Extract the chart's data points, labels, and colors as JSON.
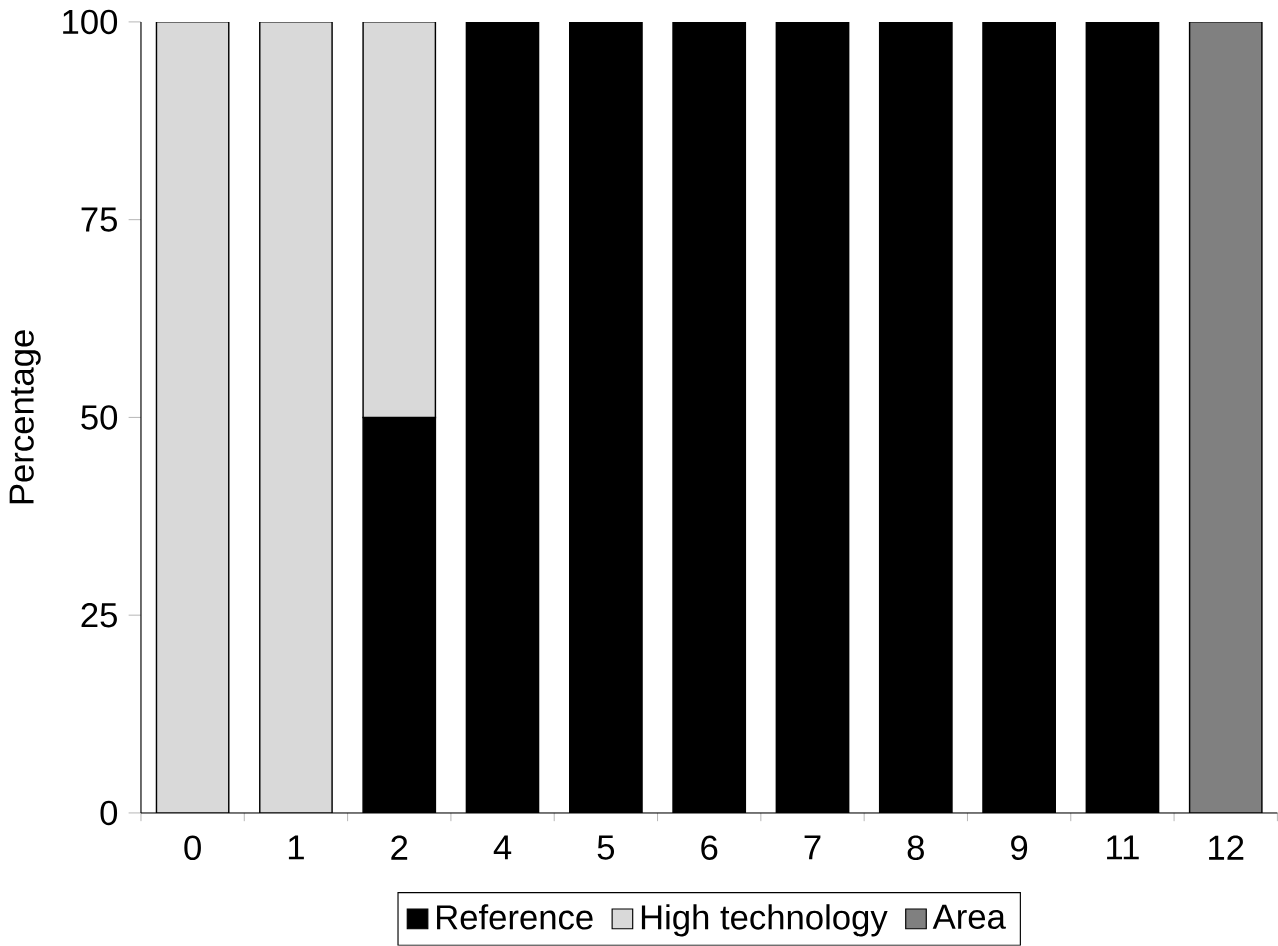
{
  "chart_data": {
    "type": "bar",
    "stacked": true,
    "ylabel": "Percentage",
    "categories": [
      "0",
      "1",
      "2",
      "4",
      "5",
      "6",
      "7",
      "8",
      "9",
      "11",
      "12"
    ],
    "series": [
      {
        "name": "Reference",
        "color": "#000000",
        "values": [
          null,
          null,
          50,
          100,
          100,
          100,
          100,
          100,
          100,
          100,
          null
        ]
      },
      {
        "name": "High technology",
        "color": "#d9d9d9",
        "values": [
          100,
          100,
          50,
          null,
          null,
          null,
          null,
          null,
          null,
          null,
          null
        ]
      },
      {
        "name": "Area",
        "color": "#808080",
        "values": [
          null,
          null,
          null,
          null,
          null,
          null,
          null,
          null,
          null,
          null,
          100
        ]
      }
    ],
    "ylim": [
      0,
      100
    ],
    "yticks": [
      0,
      25,
      50,
      75,
      100
    ],
    "legend": "bottom"
  }
}
